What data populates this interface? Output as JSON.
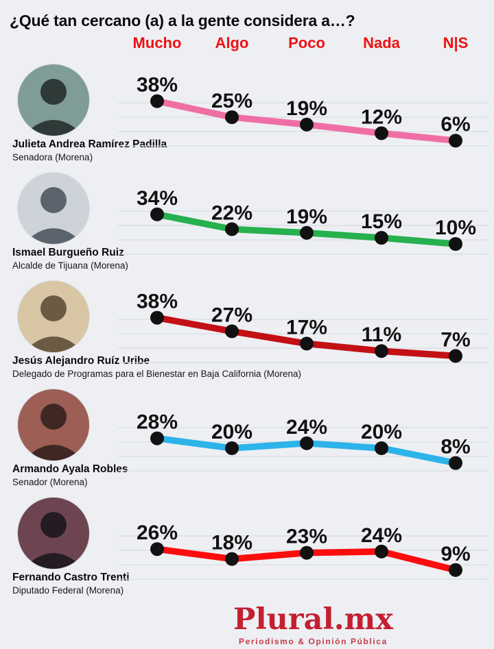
{
  "title": "¿Qué tan cercano (a) a la gente considera a…?",
  "header_color": "#ee1111",
  "background_color": "#edeff3",
  "gridline_color": "#d9dce1",
  "dot_color": "#111111",
  "people": [
    {
      "name": "Julieta Andrea Ramírez Padilla",
      "role": "Senadora (Morena)",
      "avatar_bg": "#7f9c96",
      "avatar_fg": "#2f3a38"
    },
    {
      "name": "Ismael Burgueño Ruiz",
      "role": "Alcalde de Tijuana (Morena)",
      "avatar_bg": "#cdd3d9",
      "avatar_fg": "#5b646d"
    },
    {
      "name": "Jesús Alejandro Ruíz Uribe",
      "role": "Delegado de Programas para el Bienestar en Baja California (Morena)",
      "avatar_bg": "#d8c6a4",
      "avatar_fg": "#6b5b43"
    },
    {
      "name": "Armando Ayala Robles",
      "role": "Senador (Morena)",
      "avatar_bg": "#9c5e55",
      "avatar_fg": "#3f2823"
    },
    {
      "name": "Fernando Castro Trenti",
      "role": "Diputado Federal (Morena)",
      "avatar_bg": "#6d4550",
      "avatar_fg": "#241c22"
    }
  ],
  "chart_data": {
    "type": "line",
    "title": "¿Qué tan cercano (a) a la gente considera a…?",
    "categories": [
      "Mucho",
      "Algo",
      "Poco",
      "Nada",
      "N|S"
    ],
    "series": [
      {
        "name": "Julieta Andrea Ramírez Padilla",
        "color": "#ef6fa5",
        "values": [
          38,
          25,
          19,
          12,
          6
        ]
      },
      {
        "name": "Ismael Burgueño Ruiz",
        "color": "#27b04e",
        "values": [
          34,
          22,
          19,
          15,
          10
        ]
      },
      {
        "name": "Jesús Alejandro Ruíz Uribe",
        "color": "#c31014",
        "values": [
          38,
          27,
          17,
          11,
          7
        ]
      },
      {
        "name": "Armando Ayala Robles",
        "color": "#2cb3e9",
        "values": [
          28,
          20,
          24,
          20,
          8
        ]
      },
      {
        "name": "Fernando Castro Trenti",
        "color": "#fb0d0d",
        "values": [
          26,
          18,
          23,
          24,
          9
        ]
      }
    ],
    "value_format": "percent",
    "data_labels": true,
    "grid": true,
    "ylim": [
      0,
      45
    ],
    "legend_position": "none"
  },
  "footer": {
    "brand": "Plural.mx",
    "tagline": "Periodismo & Opinión Pública",
    "brand_color": "#c41f30",
    "tagline_color": "#c43b48"
  }
}
